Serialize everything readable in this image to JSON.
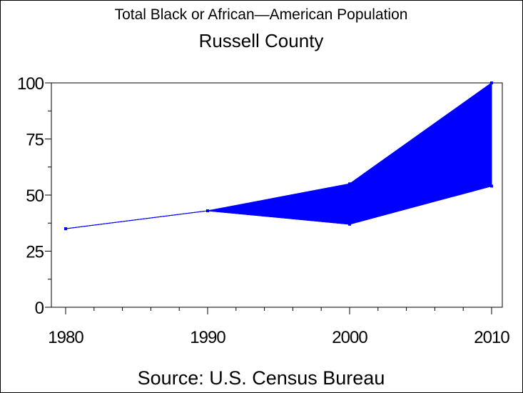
{
  "chart_data": {
    "type": "area",
    "title": "Total Black or African—American Population",
    "subtitle": "Russell County",
    "footnote": "Source: U.S. Census Bureau",
    "xlabel": "",
    "ylabel": "",
    "x": [
      1980,
      1990,
      2000,
      2010
    ],
    "x_ticks": [
      "1980",
      "1990",
      "2000",
      "2010"
    ],
    "y_ticks": [
      "0",
      "25",
      "50",
      "75",
      "100"
    ],
    "xlim": [
      1980,
      2010
    ],
    "ylim": [
      0,
      100
    ],
    "series": [
      {
        "values": [
          35,
          43,
          55,
          100
        ]
      },
      {
        "values": [
          35,
          43,
          37,
          54
        ]
      }
    ],
    "grid": false,
    "legend": "none",
    "colors": {
      "fill": "#0000ff",
      "line": "#0000ff",
      "axis": "#000000"
    }
  }
}
